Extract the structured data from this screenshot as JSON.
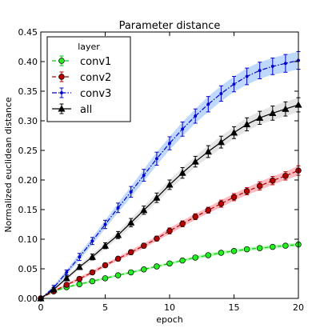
{
  "chart_data": {
    "type": "line",
    "title": "Parameter distance",
    "xlabel": "epoch",
    "ylabel": "Normalized euclidean distance",
    "xlim": [
      0,
      20
    ],
    "ylim": [
      0,
      0.45
    ],
    "xticks": [
      0,
      5,
      10,
      15,
      20
    ],
    "yticks": [
      0.0,
      0.05,
      0.1,
      0.15,
      0.2,
      0.25,
      0.3,
      0.35,
      0.4,
      0.45
    ],
    "xtick_labels": [
      "0",
      "5",
      "10",
      "15",
      "20"
    ],
    "ytick_labels": [
      "0.00",
      "0.05",
      "0.10",
      "0.15",
      "0.20",
      "0.25",
      "0.30",
      "0.35",
      "0.40",
      "0.45"
    ],
    "grid": false,
    "legend": {
      "title": "layer",
      "placement": "top-left"
    },
    "x": [
      0,
      1,
      2,
      3,
      4,
      5,
      6,
      7,
      8,
      9,
      10,
      11,
      12,
      13,
      14,
      15,
      16,
      17,
      18,
      19,
      20
    ],
    "series": [
      {
        "name": "conv1",
        "color": "#00cc00",
        "band_color": "#7cff7c",
        "marker": "circle",
        "line_style": "dashed",
        "values": [
          0.0,
          0.012,
          0.019,
          0.024,
          0.029,
          0.034,
          0.039,
          0.044,
          0.049,
          0.054,
          0.059,
          0.064,
          0.069,
          0.073,
          0.077,
          0.08,
          0.083,
          0.085,
          0.087,
          0.089,
          0.091
        ],
        "errors": [
          0.0,
          0.002,
          0.002,
          0.002,
          0.002,
          0.002,
          0.002,
          0.002,
          0.002,
          0.002,
          0.002,
          0.002,
          0.003,
          0.003,
          0.003,
          0.003,
          0.003,
          0.003,
          0.003,
          0.003,
          0.003
        ]
      },
      {
        "name": "conv2",
        "color": "#b30000",
        "band_color": "#ff7f8a",
        "marker": "circle",
        "line_style": "dashed",
        "values": [
          0.0,
          0.012,
          0.023,
          0.033,
          0.044,
          0.056,
          0.067,
          0.078,
          0.089,
          0.101,
          0.114,
          0.126,
          0.138,
          0.149,
          0.16,
          0.171,
          0.181,
          0.19,
          0.199,
          0.207,
          0.216
        ],
        "errors": [
          0.0,
          0.002,
          0.002,
          0.003,
          0.003,
          0.003,
          0.003,
          0.004,
          0.004,
          0.004,
          0.005,
          0.005,
          0.005,
          0.005,
          0.006,
          0.006,
          0.006,
          0.007,
          0.007,
          0.007,
          0.008
        ]
      },
      {
        "name": "conv3",
        "color": "#0000cc",
        "band_color": "#8ab8ff",
        "marker": "dot",
        "line_style": "dashdot",
        "values": [
          0.0,
          0.018,
          0.044,
          0.07,
          0.097,
          0.125,
          0.153,
          0.18,
          0.208,
          0.236,
          0.262,
          0.286,
          0.308,
          0.328,
          0.346,
          0.362,
          0.375,
          0.385,
          0.392,
          0.397,
          0.402
        ],
        "errors": [
          0.0,
          0.004,
          0.004,
          0.006,
          0.006,
          0.007,
          0.008,
          0.009,
          0.01,
          0.011,
          0.011,
          0.012,
          0.012,
          0.013,
          0.013,
          0.013,
          0.014,
          0.014,
          0.014,
          0.015,
          0.015
        ]
      },
      {
        "name": "all",
        "color": "#000000",
        "band_color": "#cfcfcf",
        "marker": "triangle",
        "line_style": "solid",
        "values": [
          0.0,
          0.015,
          0.034,
          0.053,
          0.07,
          0.089,
          0.107,
          0.128,
          0.149,
          0.17,
          0.192,
          0.212,
          0.231,
          0.248,
          0.264,
          0.28,
          0.294,
          0.305,
          0.313,
          0.32,
          0.327
        ],
        "errors": [
          0.0,
          0.003,
          0.004,
          0.004,
          0.005,
          0.005,
          0.006,
          0.007,
          0.007,
          0.008,
          0.008,
          0.009,
          0.009,
          0.01,
          0.01,
          0.01,
          0.011,
          0.011,
          0.012,
          0.012,
          0.012
        ]
      }
    ]
  }
}
